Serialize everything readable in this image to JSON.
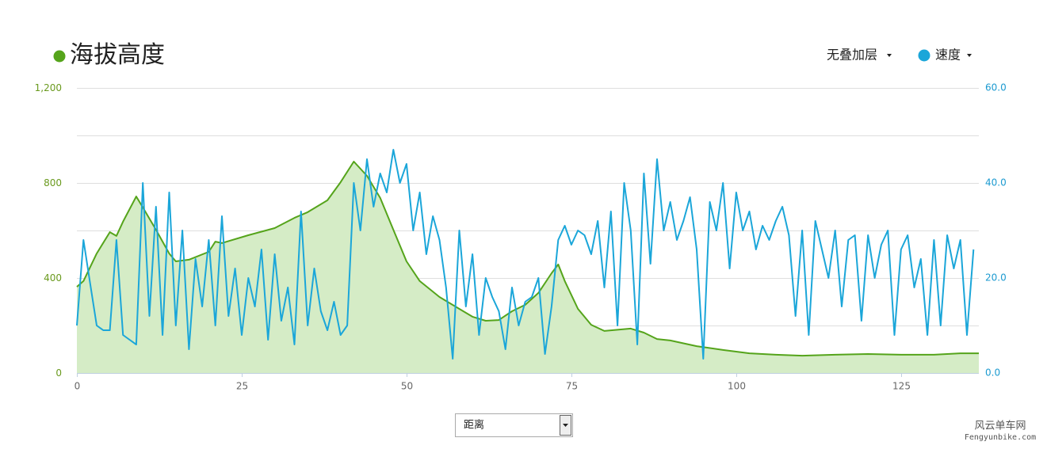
{
  "chart_data": {
    "type": "line",
    "series": [
      {
        "name": "海拔高度",
        "color": "#55a41b",
        "fill": "#d5ecc6",
        "x": [
          0,
          1,
          3,
          5,
          6,
          7,
          9,
          10,
          12,
          14,
          15,
          17,
          20,
          21,
          22,
          26,
          30,
          33,
          35,
          38,
          40,
          42,
          44,
          46,
          48,
          50,
          52,
          55,
          58,
          60,
          62,
          64,
          66,
          68,
          70,
          72,
          73,
          74,
          76,
          78,
          80,
          84,
          86,
          88,
          90,
          94,
          98,
          102,
          106,
          110,
          115,
          120,
          125,
          130,
          134,
          136.8
        ],
        "values": [
          363,
          387,
          503,
          593,
          577,
          637,
          743,
          697,
          603,
          503,
          470,
          477,
          510,
          553,
          547,
          580,
          610,
          653,
          677,
          727,
          803,
          890,
          830,
          737,
          603,
          470,
          387,
          320,
          270,
          237,
          220,
          223,
          260,
          287,
          337,
          420,
          457,
          387,
          270,
          203,
          177,
          187,
          170,
          143,
          137,
          113,
          97,
          83,
          77,
          73,
          77,
          80,
          77,
          77,
          83,
          83
        ]
      },
      {
        "name": "速度",
        "color": "#1ba6d9",
        "axis": "y2",
        "x": [
          0,
          1,
          2,
          3,
          4,
          5,
          6,
          7,
          8,
          9,
          10,
          11,
          12,
          13,
          14,
          15,
          16,
          17,
          18,
          19,
          20,
          21,
          22,
          23,
          24,
          25,
          26,
          27,
          28,
          29,
          30,
          31,
          32,
          33,
          34,
          35,
          36,
          37,
          38,
          39,
          40,
          41,
          42,
          43,
          44,
          45,
          46,
          47,
          48,
          49,
          50,
          51,
          52,
          53,
          54,
          55,
          56,
          57,
          58,
          59,
          60,
          61,
          62,
          63,
          64,
          65,
          66,
          67,
          68,
          69,
          70,
          71,
          72,
          73,
          74,
          75,
          76,
          77,
          78,
          79,
          80,
          81,
          82,
          83,
          84,
          85,
          86,
          87,
          88,
          89,
          90,
          91,
          92,
          93,
          94,
          95,
          96,
          97,
          98,
          99,
          100,
          101,
          102,
          103,
          104,
          105,
          106,
          107,
          108,
          109,
          110,
          111,
          112,
          113,
          114,
          115,
          116,
          117,
          118,
          119,
          120,
          121,
          122,
          123,
          124,
          125,
          126,
          127,
          128,
          129,
          130,
          131,
          132,
          133,
          134,
          135,
          136
        ],
        "values": [
          10,
          28,
          19,
          10,
          9,
          9,
          28,
          8,
          7,
          6,
          40,
          12,
          35,
          8,
          38,
          10,
          30,
          5,
          24,
          14,
          28,
          10,
          33,
          12,
          22,
          8,
          20,
          14,
          26,
          7,
          25,
          11,
          18,
          6,
          34,
          10,
          22,
          13,
          9,
          15,
          8,
          10,
          40,
          30,
          45,
          35,
          42,
          38,
          47,
          40,
          44,
          30,
          38,
          25,
          33,
          28,
          18,
          3,
          30,
          14,
          25,
          8,
          20,
          16,
          13,
          5,
          18,
          10,
          15,
          16,
          20,
          4,
          14,
          28,
          31,
          27,
          30,
          29,
          25,
          32,
          18,
          34,
          10,
          40,
          30,
          6,
          42,
          23,
          45,
          30,
          36,
          28,
          32,
          37,
          26,
          3,
          36,
          30,
          40,
          22,
          38,
          30,
          34,
          26,
          31,
          28,
          32,
          35,
          29,
          12,
          30,
          8,
          32,
          26,
          20,
          30,
          14,
          28,
          29,
          11,
          29,
          20,
          27,
          30,
          8,
          26,
          29,
          18,
          24,
          8,
          28,
          10,
          29,
          22,
          28,
          8,
          26
        ]
      }
    ],
    "xlim": [
      0,
      136.8
    ],
    "xticks": [
      0,
      25,
      50,
      75,
      100,
      125
    ],
    "ylim": [
      0,
      1200
    ],
    "yticks": [
      0,
      400,
      800,
      {
        "value": 1200,
        "label": "1,200"
      }
    ],
    "minor_yticks": [
      200,
      600,
      1000
    ],
    "y2lim": [
      0,
      60
    ],
    "y2ticks": [
      {
        "value": 0,
        "label": "0.0"
      },
      {
        "value": 20,
        "label": "20.0"
      },
      {
        "value": 40,
        "label": "40.0"
      },
      {
        "value": 60,
        "label": "60.0"
      }
    ],
    "grid": true
  },
  "overlay_menu": "无叠加层",
  "x_selector": "距离",
  "watermark": {
    "name": "风云单车网",
    "url": "Fengyunbike.com"
  }
}
